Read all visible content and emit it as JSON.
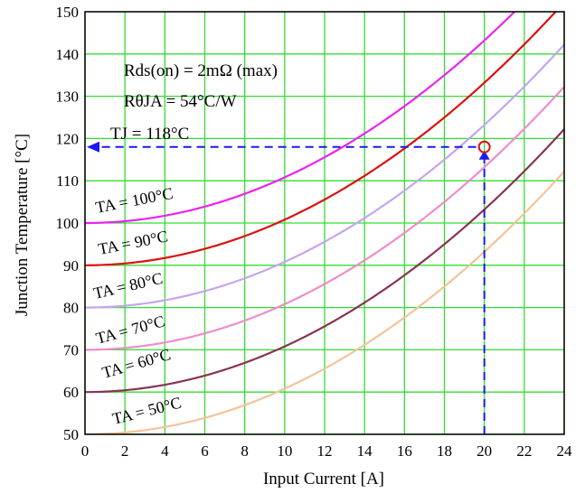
{
  "chart_data": {
    "type": "line",
    "xlabel": "Input Current [A]",
    "ylabel": "Junction Temperature [°C]",
    "xlim": [
      0,
      24
    ],
    "ylim": [
      50,
      150
    ],
    "x_ticks": [
      "0",
      "2",
      "4",
      "6",
      "8",
      "10",
      "12",
      "14",
      "16",
      "18",
      "20",
      "22",
      "24"
    ],
    "y_ticks": [
      "50",
      "60",
      "70",
      "80",
      "90",
      "100",
      "110",
      "120",
      "130",
      "140",
      "150"
    ],
    "grid": true,
    "annotations": [
      {
        "text": "Rds(on) = 2mΩ (max)"
      },
      {
        "text": "RθJA = 54°C/W"
      },
      {
        "text": "TJ = 118°C"
      }
    ],
    "marker": {
      "x": 20,
      "y": 118
    },
    "series": [
      {
        "label": "TA = 100°C",
        "ta": 100,
        "color": "#ee22ee",
        "values": [
          [
            0,
            100
          ],
          [
            2,
            100.4
          ],
          [
            4,
            101.7
          ],
          [
            6,
            103.9
          ],
          [
            8,
            106.9
          ],
          [
            10,
            110.8
          ],
          [
            12,
            115.6
          ],
          [
            14,
            121.2
          ],
          [
            16,
            127.6
          ],
          [
            18,
            135.0
          ]
        ]
      },
      {
        "label": "TA = 90°C",
        "ta": 90,
        "color": "#dd1111",
        "values": [
          [
            0,
            90
          ],
          [
            2,
            90.4
          ],
          [
            4,
            91.7
          ],
          [
            6,
            93.9
          ],
          [
            8,
            96.9
          ],
          [
            10,
            100.8
          ],
          [
            12,
            105.6
          ],
          [
            14,
            111.2
          ],
          [
            16,
            117.6
          ],
          [
            18,
            125.0
          ],
          [
            20,
            133.2
          ]
        ]
      },
      {
        "label": "TA = 80°C",
        "ta": 80,
        "color": "#c8a4f0",
        "values": [
          [
            0,
            80
          ],
          [
            2,
            80.4
          ],
          [
            4,
            81.7
          ],
          [
            6,
            83.9
          ],
          [
            8,
            86.9
          ],
          [
            10,
            90.8
          ],
          [
            12,
            95.6
          ],
          [
            14,
            101.2
          ],
          [
            16,
            107.6
          ],
          [
            18,
            115.0
          ],
          [
            20,
            123.2
          ],
          [
            22,
            132.3
          ]
        ]
      },
      {
        "label": "TA = 70°C",
        "ta": 70,
        "color": "#f08ccc",
        "values": [
          [
            0,
            70
          ],
          [
            2,
            70.4
          ],
          [
            4,
            71.7
          ],
          [
            6,
            73.9
          ],
          [
            8,
            76.9
          ],
          [
            10,
            80.8
          ],
          [
            12,
            85.6
          ],
          [
            14,
            91.2
          ],
          [
            16,
            97.6
          ],
          [
            18,
            105.0
          ],
          [
            20,
            113.2
          ],
          [
            22,
            122.3
          ]
        ]
      },
      {
        "label": "TA = 60°C",
        "ta": 60,
        "color": "#883355",
        "values": [
          [
            0,
            60
          ],
          [
            2,
            60.4
          ],
          [
            4,
            61.7
          ],
          [
            6,
            63.9
          ],
          [
            8,
            66.9
          ],
          [
            10,
            70.8
          ],
          [
            12,
            75.6
          ],
          [
            14,
            81.2
          ],
          [
            16,
            87.6
          ],
          [
            18,
            95.0
          ],
          [
            20,
            103.2
          ],
          [
            22,
            112.3
          ],
          [
            24,
            122.2
          ]
        ]
      },
      {
        "label": "TA = 50°C",
        "ta": 50,
        "color": "#f5c39a",
        "values": [
          [
            0,
            50
          ],
          [
            2,
            50.4
          ],
          [
            4,
            51.7
          ],
          [
            6,
            53.9
          ],
          [
            8,
            56.9
          ],
          [
            10,
            60.8
          ],
          [
            12,
            65.6
          ],
          [
            14,
            71.2
          ],
          [
            16,
            77.6
          ],
          [
            18,
            85.0
          ],
          [
            20,
            93.2
          ],
          [
            22,
            102.3
          ],
          [
            24,
            112.2
          ]
        ]
      }
    ]
  },
  "colors": {
    "grid": "#33dd33",
    "frame": "#000000",
    "guide": "#1a1aee",
    "marker": "#dd1111",
    "tj_label": "#8888dd"
  }
}
